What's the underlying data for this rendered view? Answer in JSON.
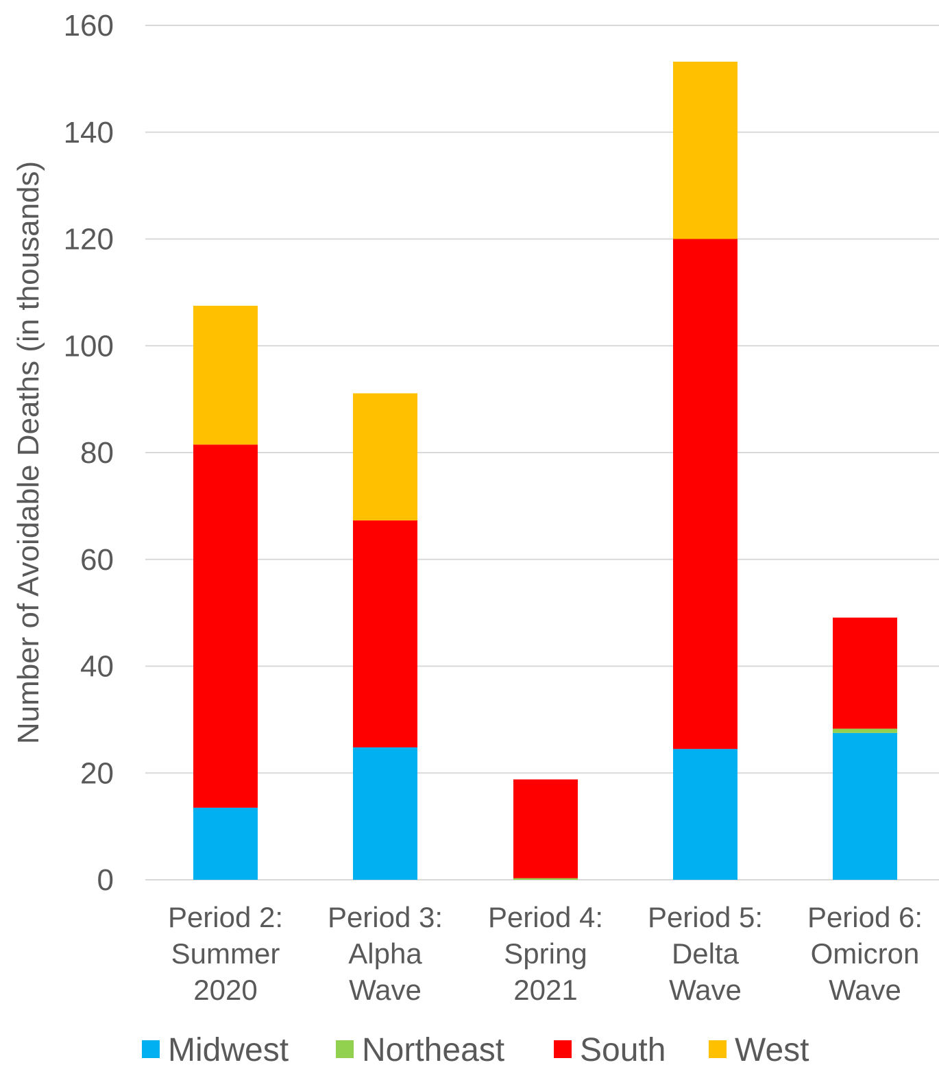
{
  "chart_data": {
    "type": "bar",
    "stacked": true,
    "title": "",
    "xlabel": "",
    "ylabel": "Number of Avoidable Deaths (in thousands)",
    "ylim": [
      0,
      160
    ],
    "yticks": [
      0,
      20,
      40,
      60,
      80,
      100,
      120,
      140,
      160
    ],
    "grid": true,
    "legend_position": "bottom",
    "categories": [
      [
        "Period 2:",
        "Summer",
        "2020"
      ],
      [
        "Period 3:",
        "Alpha",
        "Wave"
      ],
      [
        "Period 4:",
        "Spring",
        "2021"
      ],
      [
        "Period 5:",
        "Delta",
        "Wave"
      ],
      [
        "Period 6:",
        "Omicron",
        "Wave"
      ]
    ],
    "series": [
      {
        "name": "Midwest",
        "color": "#00B0F0",
        "values": [
          13.5,
          24.8,
          0,
          24.5,
          27.5
        ]
      },
      {
        "name": "Northeast",
        "color": "#92D050",
        "values": [
          0,
          0,
          0.3,
          0,
          0.8
        ]
      },
      {
        "name": "South",
        "color": "#FF0000",
        "values": [
          68,
          42.5,
          18.5,
          95.5,
          20.8
        ]
      },
      {
        "name": "West",
        "color": "#FFC000",
        "values": [
          26,
          23.8,
          0,
          33.2,
          0
        ]
      }
    ],
    "colors": {
      "gridline": "#D9D9D9",
      "axis_text": "#595959"
    }
  }
}
